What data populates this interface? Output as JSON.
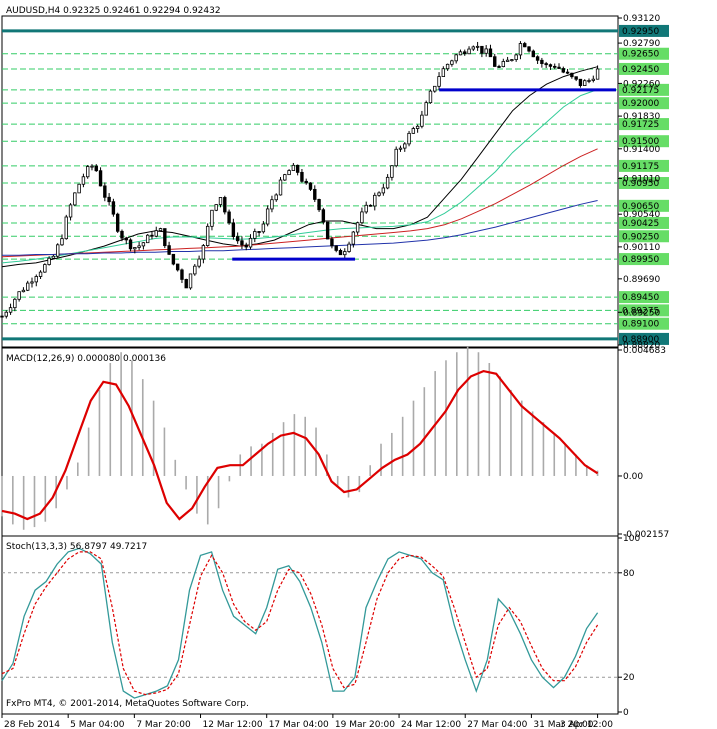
{
  "chart_data": [
    {
      "type": "candlestick",
      "title": "AUDUSD,H4",
      "ohlc_readout": "0.92325 0.92461 0.92294 0.92432",
      "ylim": [
        0.8882,
        0.9312
      ],
      "y_ticks": [
        "0.93120",
        "0.92790",
        "0.92260",
        "0.91830",
        "0.91400",
        "0.91010",
        "0.90540",
        "0.90110",
        "0.89690",
        "0.89250",
        "0.88820"
      ],
      "price_levels": [
        {
          "label": "0.92950",
          "kind": "major"
        },
        {
          "label": "0.92650",
          "kind": "minor"
        },
        {
          "label": "0.92450",
          "kind": "minor"
        },
        {
          "label": "0.92175",
          "kind": "minor"
        },
        {
          "label": "0.92000",
          "kind": "minor"
        },
        {
          "label": "0.91725",
          "kind": "minor"
        },
        {
          "label": "0.91500",
          "kind": "minor"
        },
        {
          "label": "0.91175",
          "kind": "minor"
        },
        {
          "label": "0.90950",
          "kind": "minor"
        },
        {
          "label": "0.90650",
          "kind": "minor"
        },
        {
          "label": "0.90425",
          "kind": "minor"
        },
        {
          "label": "0.90250",
          "kind": "minor"
        },
        {
          "label": "0.89950",
          "kind": "minor"
        },
        {
          "label": "0.89450",
          "kind": "minor"
        },
        {
          "label": "0.89275",
          "kind": "minor"
        },
        {
          "label": "0.89100",
          "kind": "minor"
        },
        {
          "label": "0.88900",
          "kind": "major"
        }
      ],
      "x_labels": [
        "28 Feb 2014",
        "5 Mar 04:00",
        "7 Mar 20:00",
        "12 Mar 12:00",
        "17 Mar 04:00",
        "19 Mar 20:00",
        "24 Mar 12:00",
        "27 Mar 04:00",
        "31 Mar 20:00",
        "3 Apr 12:00"
      ],
      "close_path": [
        0.892,
        0.8935,
        0.895,
        0.8962,
        0.8975,
        0.8985,
        0.8995,
        0.902,
        0.906,
        0.909,
        0.911,
        0.912,
        0.9085,
        0.906,
        0.903,
        0.9015,
        0.901,
        0.9018,
        0.903,
        0.9032,
        0.8995,
        0.898,
        0.896,
        0.899,
        0.901,
        0.906,
        0.908,
        0.904,
        0.902,
        0.901,
        0.9025,
        0.9035,
        0.907,
        0.909,
        0.911,
        0.9115,
        0.9095,
        0.908,
        0.906,
        0.9015,
        0.9,
        0.901,
        0.9035,
        0.9055,
        0.907,
        0.9085,
        0.91,
        0.9135,
        0.915,
        0.9165,
        0.918,
        0.921,
        0.9235,
        0.925,
        0.9262,
        0.9268,
        0.928,
        0.927,
        0.9265,
        0.9245,
        0.9252,
        0.9262,
        0.9282,
        0.927,
        0.9255,
        0.9248,
        0.925,
        0.924,
        0.9232,
        0.9225,
        0.923,
        0.9243
      ],
      "annotations": [
        {
          "kind": "support",
          "y": 0.8995,
          "x_from": 0.375,
          "x_to": 0.575
        },
        {
          "kind": "support",
          "y": 0.92175,
          "x_from": 0.712,
          "x_to": 1.0
        }
      ],
      "moving_averages": [
        {
          "color": "#000000",
          "path": [
            0.8985,
            0.8988,
            0.899,
            0.8995,
            0.9,
            0.9006,
            0.9012,
            0.902,
            0.9028,
            0.9032,
            0.903,
            0.9025,
            0.902,
            0.9015,
            0.9012,
            0.9015,
            0.902,
            0.903,
            0.904,
            0.9045,
            0.9045,
            0.904,
            0.9035,
            0.9035,
            0.904,
            0.905,
            0.9075,
            0.91,
            0.913,
            0.916,
            0.919,
            0.921,
            0.9225,
            0.9235,
            0.9242,
            0.9248
          ]
        },
        {
          "color": "#33cc99",
          "path": [
            0.899,
            0.8992,
            0.8995,
            0.8998,
            0.9002,
            0.9006,
            0.901,
            0.9014,
            0.9018,
            0.9022,
            0.9024,
            0.9024,
            0.9023,
            0.9022,
            0.9021,
            0.9022,
            0.9024,
            0.9027,
            0.903,
            0.9033,
            0.9035,
            0.9036,
            0.9037,
            0.9038,
            0.904,
            0.9044,
            0.9055,
            0.907,
            0.909,
            0.911,
            0.9135,
            0.9155,
            0.9175,
            0.9195,
            0.921,
            0.9218
          ]
        },
        {
          "color": "#cc2222",
          "path": [
            0.8998,
            0.8999,
            0.9,
            0.9001,
            0.9002,
            0.9003,
            0.9004,
            0.9005,
            0.9006,
            0.9007,
            0.9008,
            0.9009,
            0.901,
            0.9011,
            0.9012,
            0.9014,
            0.9016,
            0.9018,
            0.902,
            0.9022,
            0.9024,
            0.9026,
            0.9028,
            0.903,
            0.9032,
            0.9035,
            0.904,
            0.9048,
            0.9058,
            0.9068,
            0.908,
            0.9092,
            0.9105,
            0.9118,
            0.913,
            0.914
          ]
        },
        {
          "color": "#2233aa",
          "path": [
            0.9,
            0.9,
            0.9001,
            0.9001,
            0.9002,
            0.9002,
            0.9003,
            0.9003,
            0.9004,
            0.9004,
            0.9005,
            0.9005,
            0.9006,
            0.9006,
            0.9007,
            0.9008,
            0.9009,
            0.901,
            0.9011,
            0.9012,
            0.9013,
            0.9014,
            0.9015,
            0.9016,
            0.9018,
            0.902,
            0.9023,
            0.9027,
            0.9032,
            0.9037,
            0.9043,
            0.9049,
            0.9055,
            0.9061,
            0.9067,
            0.9072
          ]
        }
      ]
    },
    {
      "type": "histogram+line",
      "title": "MACD(12,26,9) 0.000080 0.000136",
      "ylim": [
        -0.002157,
        0.004683
      ],
      "y_ticks": [
        "0.004683",
        "0.00",
        "-0.002157"
      ],
      "histogram": [
        -0.0015,
        -0.0018,
        -0.002,
        -0.0019,
        -0.0017,
        -0.0012,
        -0.0005,
        0.0005,
        0.0018,
        0.0032,
        0.0042,
        0.0046,
        0.0043,
        0.0036,
        0.0028,
        0.0018,
        0.0006,
        -0.0005,
        -0.0014,
        -0.0018,
        -0.0012,
        -0.0002,
        0.0008,
        0.0011,
        0.0012,
        0.0016,
        0.002,
        0.0023,
        0.0022,
        0.0018,
        0.0008,
        -0.0004,
        -0.0008,
        -0.0006,
        0.0004,
        0.0012,
        0.0016,
        0.0022,
        0.0028,
        0.0033,
        0.0039,
        0.0043,
        0.0046,
        0.0048,
        0.0046,
        0.0042,
        0.0037,
        0.0032,
        0.0028,
        0.0024,
        0.002,
        0.0016,
        0.0012,
        0.0008,
        0.0004,
        0.0002
      ],
      "signal": [
        -0.0013,
        -0.0014,
        -0.0016,
        -0.0014,
        -0.0008,
        0.0002,
        0.0015,
        0.0028,
        0.0035,
        0.0034,
        0.0026,
        0.0015,
        0.0004,
        -0.001,
        -0.0016,
        -0.0012,
        -0.0004,
        0.0003,
        0.0004,
        0.0004,
        0.0008,
        0.0012,
        0.0015,
        0.0016,
        0.0014,
        0.0008,
        -0.0002,
        -0.0006,
        -0.0005,
        -0.0001,
        0.0003,
        0.0006,
        0.0008,
        0.0012,
        0.0018,
        0.0024,
        0.0032,
        0.0037,
        0.0039,
        0.0038,
        0.0032,
        0.0026,
        0.0022,
        0.0018,
        0.0014,
        0.0009,
        0.0004,
        0.0001
      ]
    },
    {
      "type": "line",
      "title": "Stoch(13,3,3) 56.8797 49.7217",
      "ylim": [
        0,
        100
      ],
      "y_ticks": [
        "100",
        "80",
        "20",
        "0"
      ],
      "main": [
        18,
        28,
        55,
        70,
        75,
        85,
        92,
        94,
        91,
        85,
        40,
        12,
        8,
        10,
        12,
        15,
        30,
        70,
        90,
        92,
        70,
        55,
        50,
        45,
        60,
        82,
        84,
        75,
        60,
        40,
        12,
        12,
        20,
        60,
        75,
        88,
        92,
        90,
        88,
        80,
        76,
        50,
        30,
        12,
        30,
        65,
        58,
        45,
        30,
        20,
        14,
        20,
        32,
        48,
        57
      ],
      "signal": [
        22,
        25,
        45,
        62,
        72,
        80,
        88,
        92,
        92,
        88,
        60,
        25,
        12,
        10,
        11,
        13,
        22,
        50,
        78,
        90,
        80,
        62,
        52,
        47,
        52,
        70,
        82,
        80,
        68,
        50,
        25,
        14,
        16,
        40,
        65,
        80,
        88,
        90,
        89,
        84,
        78,
        60,
        40,
        20,
        25,
        50,
        60,
        52,
        38,
        25,
        18,
        18,
        26,
        40,
        50
      ]
    }
  ],
  "footer": {
    "copyright": "FxPro MT4, © 2001-2014, MetaQuotes Software Corp."
  },
  "colors": {
    "candle": "#000000",
    "levels": "#33cc66",
    "major_levels": "#117777",
    "support": "#0000cc",
    "macd_hist": "#aaaaaa",
    "macd_signal": "#dd0000",
    "stoch_main": "#339999",
    "stoch_signal": "#dd0000"
  }
}
